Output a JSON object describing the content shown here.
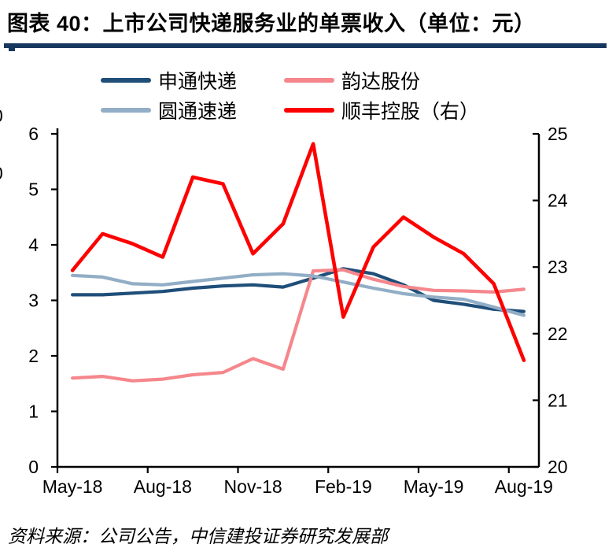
{
  "header": {
    "title": "图表 40：上市公司快递服务业的单票收入（单位：元）",
    "rule_color": "#17375E"
  },
  "source": {
    "text": "资料来源：公司公告，中信建投证券研究发展部"
  },
  "artifacts": {
    "left_edge_clipped_digits": [
      "0",
      "0"
    ]
  },
  "legend": {
    "order": [
      "shentong",
      "yunda",
      "yuantong",
      "shunfeng"
    ]
  },
  "chart_data": {
    "type": "line",
    "title": "上市公司快递服务业的单票收入（单位：元）",
    "x_categories": [
      "May-18",
      "Jun-18",
      "Jul-18",
      "Aug-18",
      "Sep-18",
      "Oct-18",
      "Nov-18",
      "Dec-18",
      "Jan-19",
      "Feb-19",
      "Mar-19",
      "Apr-19",
      "May-19",
      "Jun-19",
      "Jul-19",
      "Aug-19"
    ],
    "x_tick_labels": [
      "May-18",
      "Aug-18",
      "Nov-18",
      "Feb-19",
      "May-19",
      "Aug-19"
    ],
    "x_tick_indices": [
      0,
      3,
      6,
      9,
      12,
      15
    ],
    "left_axis": {
      "min": 0,
      "max": 6,
      "ticks": [
        0,
        1,
        2,
        3,
        4,
        5,
        6
      ]
    },
    "right_axis": {
      "min": 20,
      "max": 25,
      "ticks": [
        20,
        21,
        22,
        23,
        24,
        25
      ]
    },
    "grid": false,
    "legend_position": "top",
    "axis_color": "#000000",
    "series": [
      {
        "id": "shentong",
        "name": "申通快递",
        "axis": "left",
        "color": "#1F4E79",
        "values": [
          3.1,
          3.1,
          3.13,
          3.16,
          3.22,
          3.26,
          3.28,
          3.24,
          3.4,
          3.57,
          3.48,
          3.28,
          3.0,
          2.93,
          2.84,
          2.8
        ]
      },
      {
        "id": "yunda",
        "name": "韵达股份",
        "axis": "left",
        "color": "#F5878C",
        "values": [
          1.6,
          1.63,
          1.55,
          1.58,
          1.66,
          1.7,
          1.95,
          1.76,
          3.53,
          3.55,
          3.38,
          3.25,
          3.18,
          3.17,
          3.15,
          3.2
        ]
      },
      {
        "id": "yuantong",
        "name": "圆通速递",
        "axis": "left",
        "color": "#92AEC6",
        "values": [
          3.45,
          3.42,
          3.3,
          3.28,
          3.34,
          3.4,
          3.46,
          3.48,
          3.44,
          3.33,
          3.22,
          3.12,
          3.06,
          3.02,
          2.88,
          2.73
        ]
      },
      {
        "id": "shunfeng",
        "name": "顺丰控股（右）",
        "axis": "right",
        "color": "#FD0000",
        "values": [
          22.95,
          23.5,
          23.35,
          23.15,
          24.35,
          24.25,
          23.2,
          23.65,
          24.85,
          22.25,
          23.3,
          23.75,
          23.45,
          23.2,
          22.75,
          21.6
        ]
      }
    ]
  }
}
